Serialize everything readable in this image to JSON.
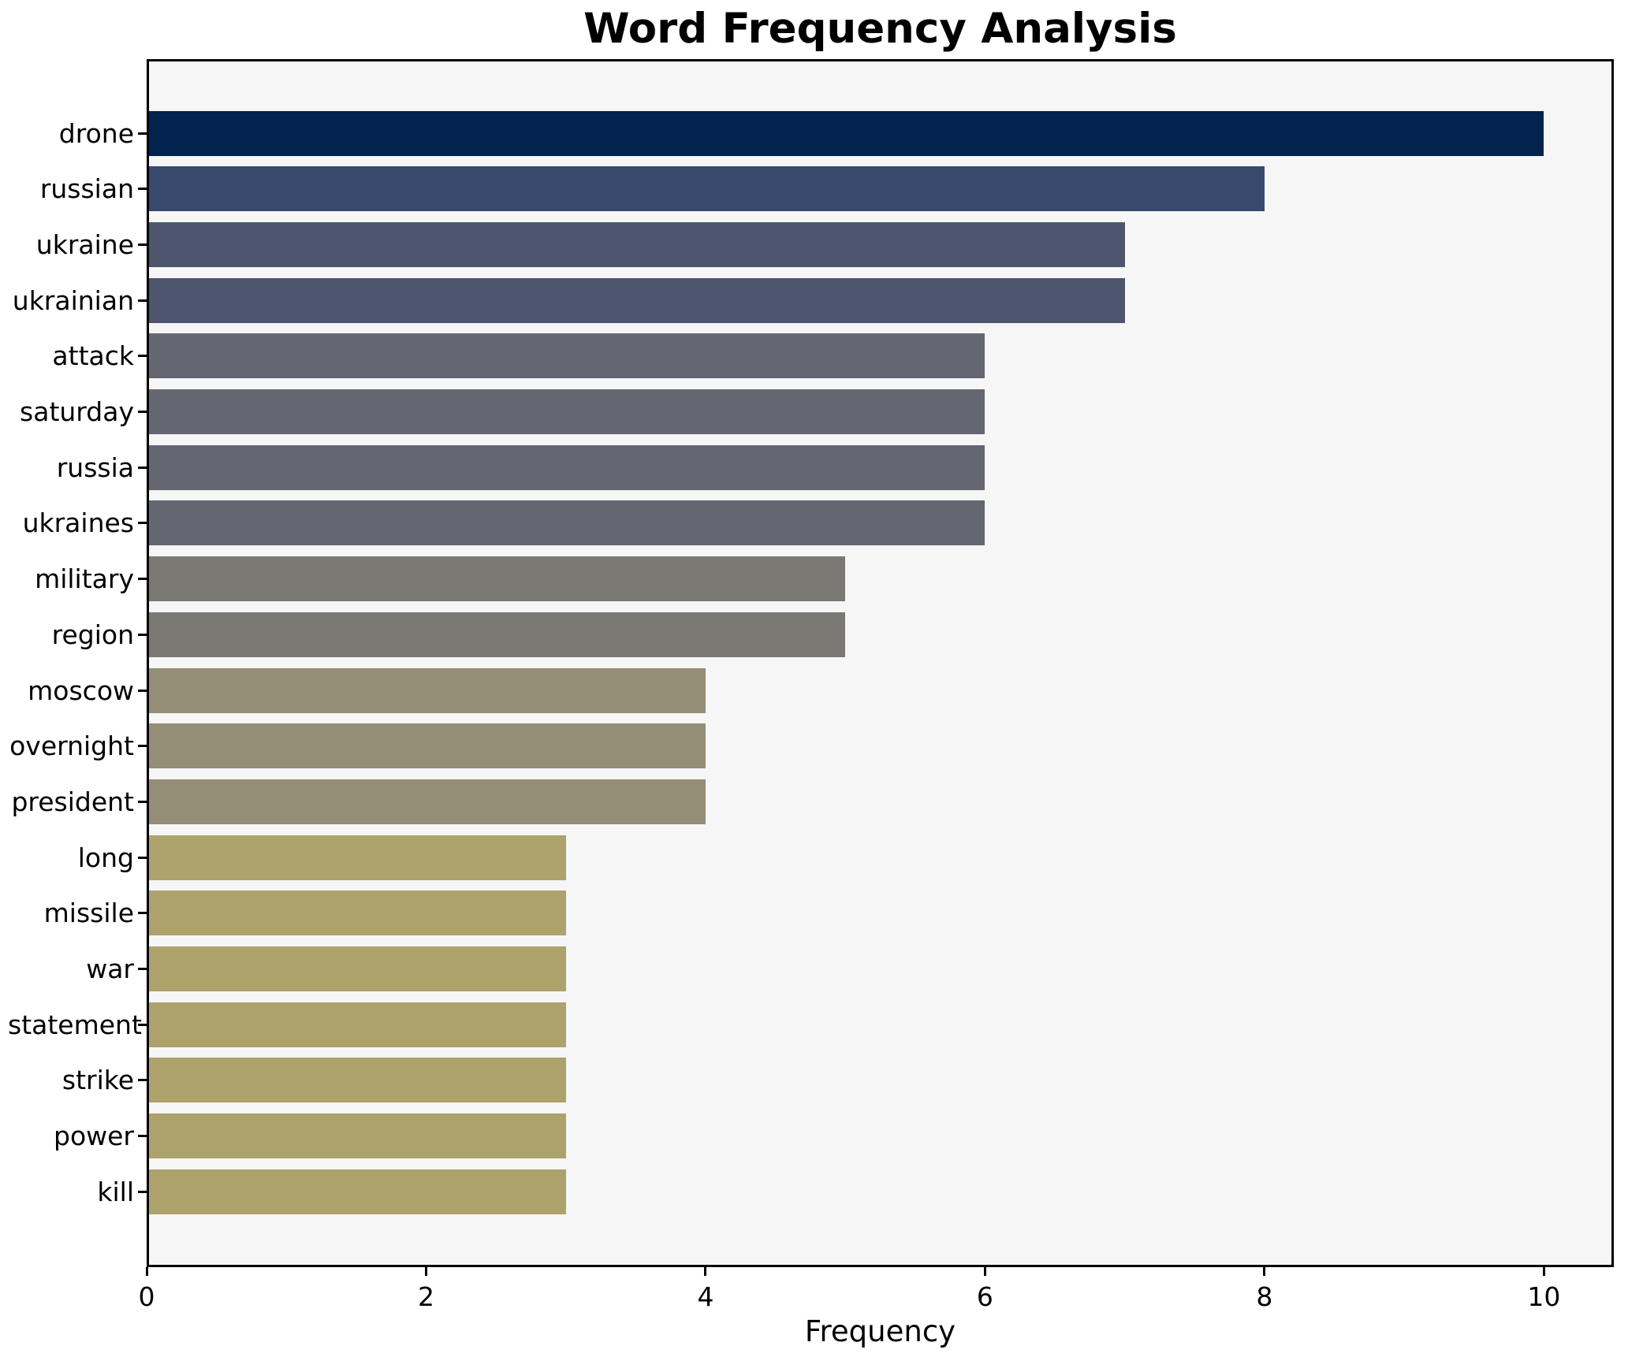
{
  "chart_data": {
    "type": "bar",
    "orientation": "horizontal",
    "title": "Word Frequency Analysis",
    "xlabel": "Frequency",
    "ylabel": "",
    "xlim": [
      0,
      10.5
    ],
    "xticks": [
      "0",
      "2",
      "4",
      "6",
      "8",
      "10"
    ],
    "xtick_values": [
      0,
      2,
      4,
      6,
      8,
      10
    ],
    "grid": "off",
    "legend": "none",
    "plot_bg_color": "#f6f6f7",
    "frame_color": "#000000",
    "categories": [
      "drone",
      "russian",
      "ukraine",
      "ukrainian",
      "attack",
      "saturday",
      "russia",
      "ukraines",
      "military",
      "region",
      "moscow",
      "overnight",
      "president",
      "long",
      "missile",
      "war",
      "statement",
      "strike",
      "power",
      "kill"
    ],
    "values": [
      10,
      8,
      7,
      7,
      6,
      6,
      6,
      6,
      5,
      5,
      4,
      4,
      4,
      3,
      3,
      3,
      3,
      3,
      3,
      3
    ],
    "bar_colors": [
      "#02234e",
      "#39496d",
      "#4d566c",
      "#4d566c",
      "#646772",
      "#646772",
      "#646772",
      "#646772",
      "#7a7873",
      "#7a7873",
      "#948e77",
      "#948e77",
      "#948e77",
      "#aea26c",
      "#aea26c",
      "#aea26c",
      "#aea26c",
      "#aea26c",
      "#aea26c",
      "#aea26c"
    ]
  }
}
